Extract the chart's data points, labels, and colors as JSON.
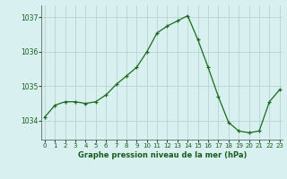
{
  "hours": [
    0,
    1,
    2,
    3,
    4,
    5,
    6,
    7,
    8,
    9,
    10,
    11,
    12,
    13,
    14,
    15,
    16,
    17,
    18,
    19,
    20,
    21,
    22,
    23
  ],
  "pressure": [
    1034.1,
    1034.45,
    1034.55,
    1034.55,
    1034.5,
    1034.55,
    1034.75,
    1035.05,
    1035.3,
    1035.55,
    1036.0,
    1036.55,
    1036.75,
    1036.9,
    1037.05,
    1036.35,
    1035.55,
    1034.7,
    1033.95,
    1033.7,
    1033.65,
    1033.7,
    1034.55,
    1034.9
  ],
  "line_color": "#1a6b1a",
  "marker_color": "#1a6b1a",
  "bg_color": "#d8f0f0",
  "grid_color_major": "#b0cece",
  "grid_color_minor": "#c8e4e4",
  "axis_color": "#666666",
  "label_color": "#1a5c1a",
  "ylabel_ticks": [
    1034,
    1035,
    1036,
    1037
  ],
  "xlabel_ticks": [
    0,
    1,
    2,
    3,
    4,
    5,
    6,
    7,
    8,
    9,
    10,
    11,
    12,
    13,
    14,
    15,
    16,
    17,
    18,
    19,
    20,
    21,
    22,
    23
  ],
  "xlabel_label": "Graphe pression niveau de la mer (hPa)",
  "ylim": [
    1033.45,
    1037.35
  ],
  "xlim": [
    -0.3,
    23.3
  ]
}
